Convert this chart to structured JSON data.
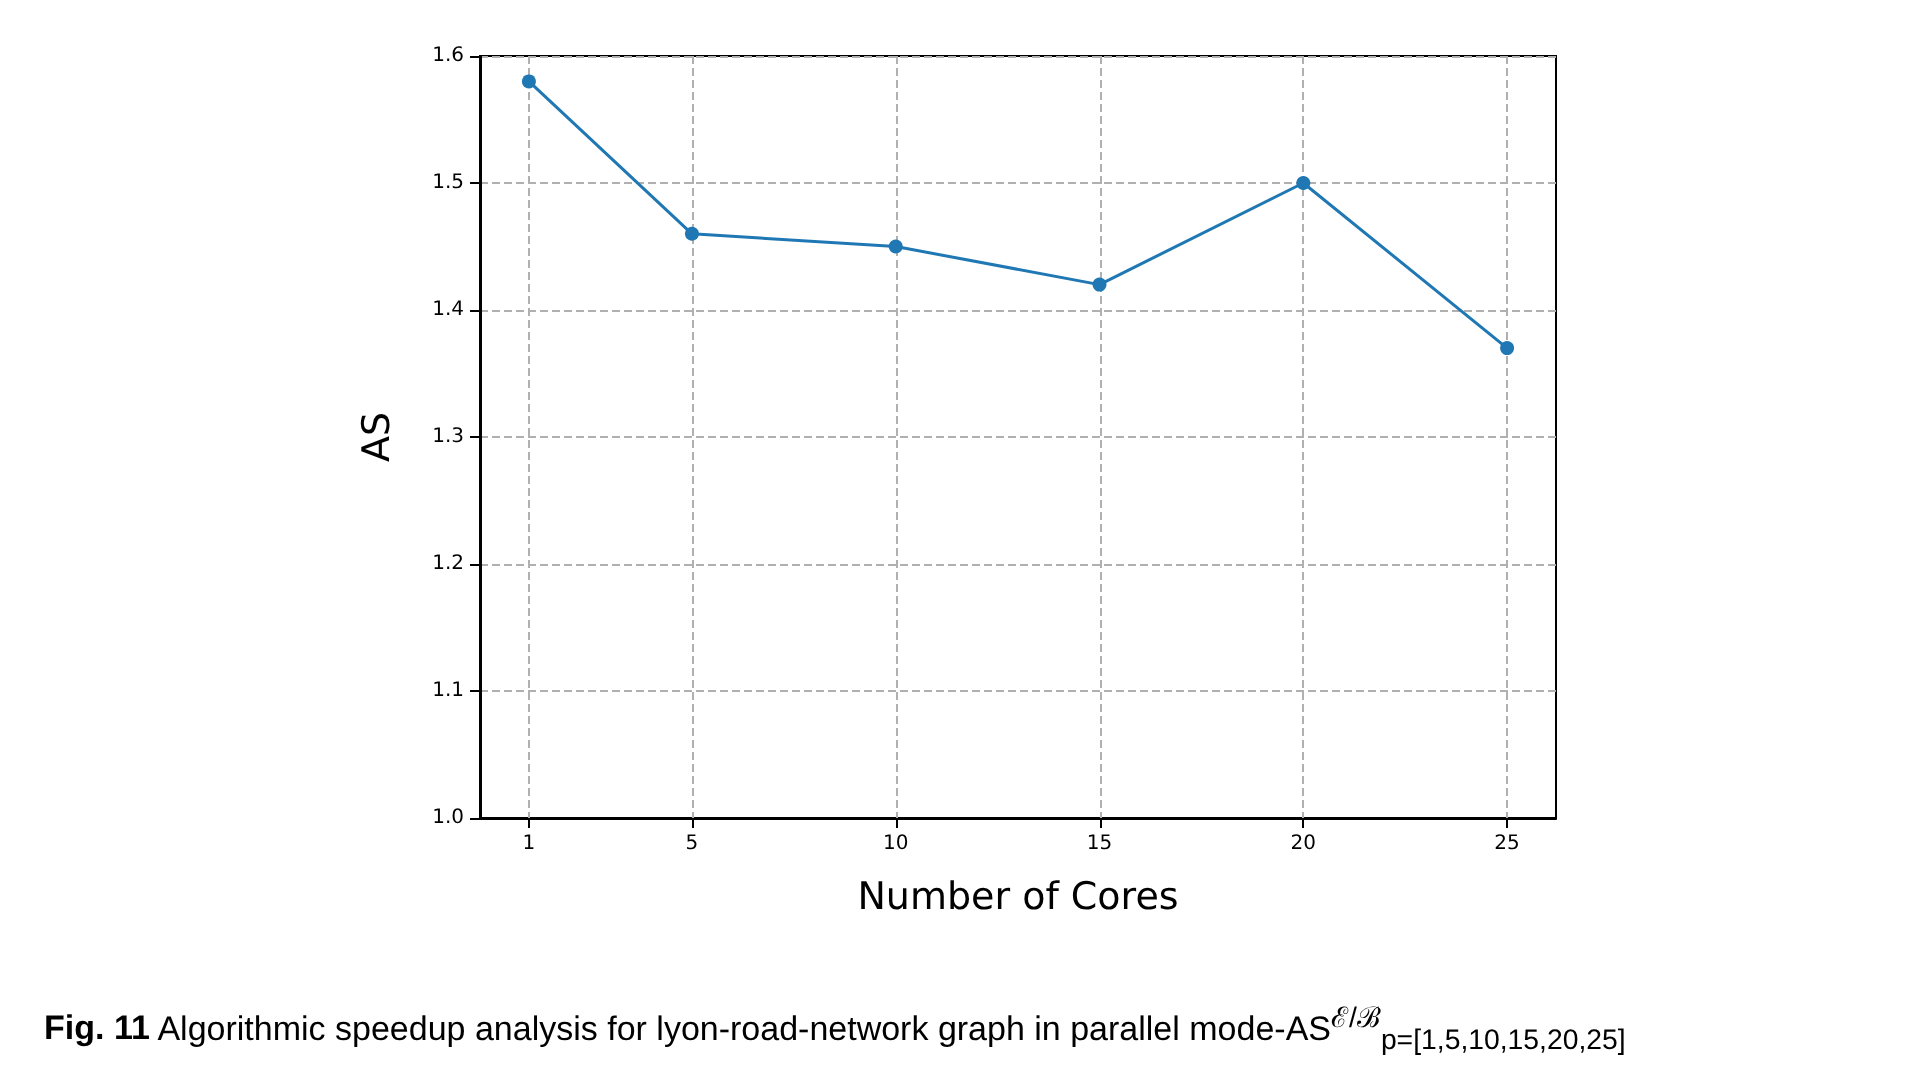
{
  "chart_data": {
    "type": "line",
    "xlabel": "Number of Cores",
    "ylabel": "AS",
    "x": [
      1,
      5,
      10,
      15,
      20,
      25
    ],
    "series": [
      {
        "color": "#1f77b4",
        "values": [
          1.58,
          1.46,
          1.45,
          1.42,
          1.5,
          1.37
        ]
      }
    ],
    "xlim": [
      -0.2,
      26.2
    ],
    "xticks": [
      1,
      5,
      10,
      15,
      20,
      25
    ],
    "ylim": [
      1.0,
      1.6
    ],
    "yticks": [
      {
        "value": 1.0,
        "label": "1.0"
      },
      1.1,
      1.2,
      1.3,
      1.4,
      1.5,
      1.6
    ],
    "grid": true,
    "marker": "circle",
    "line_style": "solid",
    "annotations": [
      "Fig. 11  Algorithmic speedup analysis for lyon-road-network graph in parallel mode-AS$^{ℰ/ℬ}$$_{p=[1,5,10,15,20,25]}$"
    ]
  }
}
